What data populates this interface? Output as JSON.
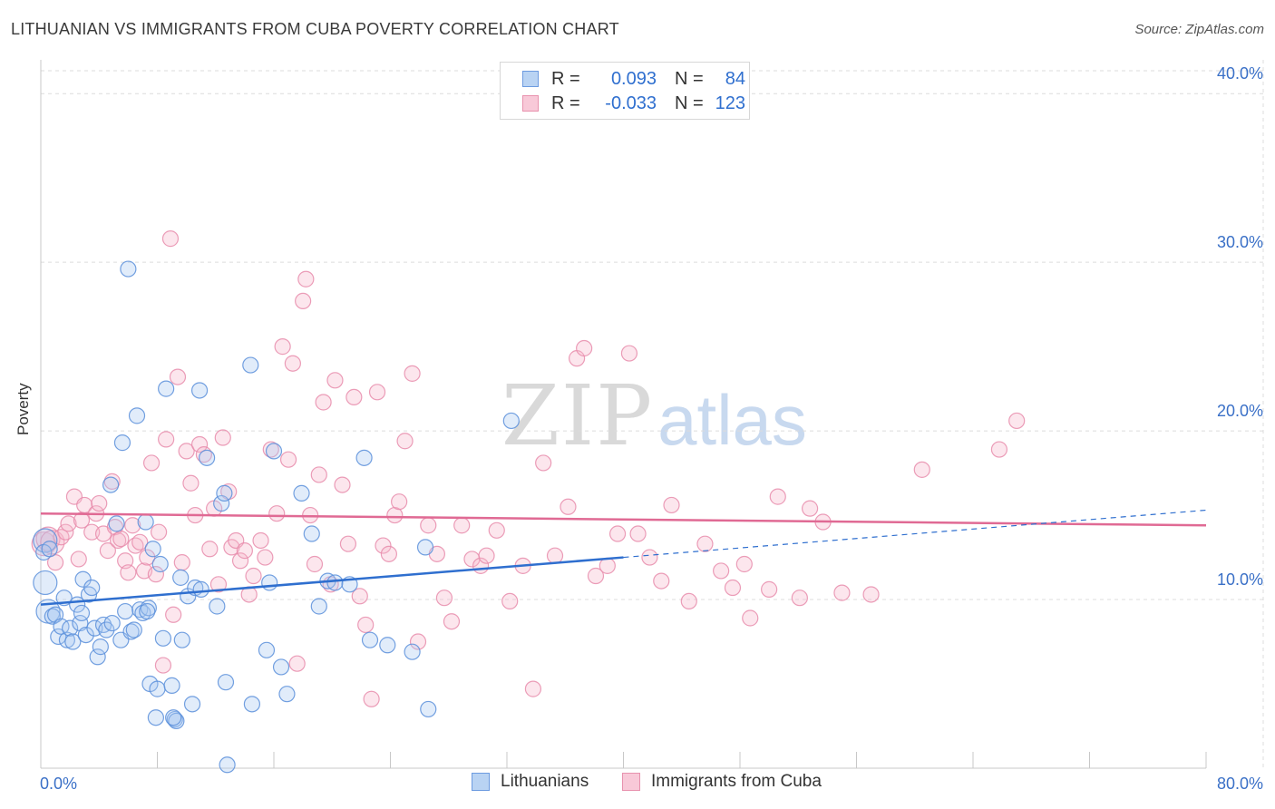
{
  "header": {
    "title": "LITHUANIAN VS IMMIGRANTS FROM CUBA POVERTY CORRELATION CHART",
    "source": "Source: ZipAtlas.com"
  },
  "watermark": {
    "zip": "ZIP",
    "atlas": "atlas"
  },
  "colors": {
    "blue": "#2f6fcf",
    "blue_fill": "#a9c8f0",
    "pink": "#e06a94",
    "pink_fill": "#f5b8cc",
    "grid": "#dcdcdc",
    "tick_label": "#3a70c7"
  },
  "legend": {
    "rows": [
      {
        "r_label": "R =",
        "r_value": "0.093",
        "n_label": "N =",
        "n_value": "84"
      },
      {
        "r_label": "R =",
        "r_value": "-0.033",
        "n_label": "N =",
        "n_value": "123"
      }
    ]
  },
  "bottom_legend": {
    "series1": "Lithuanians",
    "series2": "Immigrants from Cuba"
  },
  "chart_data": {
    "type": "scatter",
    "title": "LITHUANIAN VS IMMIGRANTS FROM CUBA POVERTY CORRELATION CHART",
    "xlabel": "",
    "ylabel": "Poverty",
    "xlim": [
      0,
      80
    ],
    "ylim": [
      0,
      42
    ],
    "x_tick_labels": [
      "0.0%",
      "80.0%"
    ],
    "y_ticks": [
      10,
      20,
      30,
      40
    ],
    "y_tick_labels": [
      "10.0%",
      "20.0%",
      "30.0%",
      "40.0%"
    ],
    "grid": true,
    "series": [
      {
        "name": "Lithuanians",
        "r": 0.093,
        "n": 84,
        "trend": {
          "x0": 0,
          "y0": 9.7,
          "x1": 40,
          "y1": 12.5,
          "dashed_to_x": 80,
          "dashed_to_y": 15.3
        },
        "points": [
          [
            0.3,
            13.5
          ],
          [
            0.3,
            11.0
          ],
          [
            0.5,
            9.3
          ],
          [
            0.8,
            9.0
          ],
          [
            1.0,
            9.1
          ],
          [
            1.2,
            7.8
          ],
          [
            1.4,
            8.4
          ],
          [
            1.6,
            10.1
          ],
          [
            1.8,
            7.6
          ],
          [
            2.0,
            8.3
          ],
          [
            2.2,
            7.5
          ],
          [
            2.5,
            9.7
          ],
          [
            2.7,
            8.6
          ],
          [
            2.9,
            11.2
          ],
          [
            3.1,
            7.9
          ],
          [
            3.3,
            10.3
          ],
          [
            3.5,
            10.7
          ],
          [
            3.7,
            8.3
          ],
          [
            3.9,
            6.6
          ],
          [
            4.1,
            7.2
          ],
          [
            4.3,
            8.5
          ],
          [
            4.5,
            8.2
          ],
          [
            4.8,
            16.8
          ],
          [
            4.9,
            8.6
          ],
          [
            5.2,
            14.5
          ],
          [
            5.5,
            7.6
          ],
          [
            5.6,
            19.3
          ],
          [
            5.8,
            9.3
          ],
          [
            6.0,
            29.6
          ],
          [
            6.2,
            8.1
          ],
          [
            6.4,
            8.2
          ],
          [
            6.6,
            20.9
          ],
          [
            6.8,
            9.4
          ],
          [
            7.0,
            9.2
          ],
          [
            7.2,
            14.6
          ],
          [
            7.4,
            9.5
          ],
          [
            7.5,
            5.0
          ],
          [
            7.7,
            13.0
          ],
          [
            7.9,
            3.0
          ],
          [
            8.0,
            4.7
          ],
          [
            8.2,
            12.1
          ],
          [
            8.4,
            7.7
          ],
          [
            8.6,
            22.5
          ],
          [
            9.0,
            4.9
          ],
          [
            9.2,
            2.9
          ],
          [
            9.3,
            2.8
          ],
          [
            9.6,
            11.3
          ],
          [
            9.7,
            7.6
          ],
          [
            10.1,
            10.2
          ],
          [
            10.4,
            3.8
          ],
          [
            10.6,
            10.7
          ],
          [
            10.9,
            22.4
          ],
          [
            11.0,
            10.6
          ],
          [
            11.4,
            18.4
          ],
          [
            12.1,
            9.6
          ],
          [
            12.4,
            15.7
          ],
          [
            12.6,
            16.3
          ],
          [
            12.7,
            5.1
          ],
          [
            12.8,
            0.2
          ],
          [
            14.4,
            23.9
          ],
          [
            14.5,
            3.8
          ],
          [
            15.5,
            7.0
          ],
          [
            15.7,
            11.0
          ],
          [
            16.0,
            18.8
          ],
          [
            16.5,
            6.0
          ],
          [
            16.9,
            4.4
          ],
          [
            17.9,
            16.3
          ],
          [
            18.6,
            13.9
          ],
          [
            19.1,
            9.6
          ],
          [
            19.7,
            11.1
          ],
          [
            20.2,
            11.0
          ],
          [
            21.2,
            10.9
          ],
          [
            22.2,
            18.4
          ],
          [
            22.6,
            7.6
          ],
          [
            23.8,
            7.3
          ],
          [
            25.5,
            6.9
          ],
          [
            26.4,
            13.1
          ],
          [
            26.6,
            3.5
          ],
          [
            32.3,
            20.6
          ],
          [
            0.2,
            12.8
          ],
          [
            0.6,
            13.0
          ],
          [
            2.8,
            9.2
          ],
          [
            9.1,
            3.0
          ],
          [
            7.3,
            9.3
          ]
        ]
      },
      {
        "name": "Immigrants from Cuba",
        "r": -0.033,
        "n": 123,
        "trend": {
          "x0": 0,
          "y0": 15.1,
          "x1": 80,
          "y1": 14.4
        },
        "points": [
          [
            0.2,
            13.3
          ],
          [
            0.5,
            13.6
          ],
          [
            0.8,
            13.4
          ],
          [
            1.0,
            12.2
          ],
          [
            1.4,
            13.7
          ],
          [
            1.7,
            14.0
          ],
          [
            1.9,
            14.5
          ],
          [
            2.3,
            16.1
          ],
          [
            2.6,
            12.4
          ],
          [
            2.8,
            14.7
          ],
          [
            3.0,
            15.6
          ],
          [
            3.5,
            14.0
          ],
          [
            3.8,
            15.1
          ],
          [
            4.0,
            15.7
          ],
          [
            4.3,
            13.9
          ],
          [
            4.6,
            12.9
          ],
          [
            4.9,
            17.0
          ],
          [
            5.1,
            14.3
          ],
          [
            5.3,
            13.5
          ],
          [
            5.5,
            13.6
          ],
          [
            5.8,
            12.3
          ],
          [
            6.0,
            11.6
          ],
          [
            6.3,
            14.4
          ],
          [
            6.5,
            13.2
          ],
          [
            6.8,
            13.4
          ],
          [
            7.1,
            11.7
          ],
          [
            7.3,
            12.5
          ],
          [
            7.6,
            18.1
          ],
          [
            7.9,
            11.5
          ],
          [
            8.1,
            14.0
          ],
          [
            8.4,
            6.1
          ],
          [
            8.6,
            19.5
          ],
          [
            8.9,
            31.4
          ],
          [
            9.1,
            9.1
          ],
          [
            9.4,
            23.2
          ],
          [
            9.7,
            12.2
          ],
          [
            10.0,
            18.8
          ],
          [
            10.3,
            16.9
          ],
          [
            10.6,
            15.0
          ],
          [
            10.9,
            19.2
          ],
          [
            11.2,
            18.6
          ],
          [
            11.6,
            13.0
          ],
          [
            11.9,
            15.4
          ],
          [
            12.2,
            10.9
          ],
          [
            12.5,
            19.6
          ],
          [
            12.9,
            16.4
          ],
          [
            13.1,
            13.1
          ],
          [
            13.4,
            13.5
          ],
          [
            13.7,
            12.3
          ],
          [
            14.0,
            12.9
          ],
          [
            14.3,
            10.3
          ],
          [
            14.6,
            11.4
          ],
          [
            15.1,
            13.5
          ],
          [
            15.4,
            12.5
          ],
          [
            15.8,
            18.9
          ],
          [
            16.2,
            15.1
          ],
          [
            16.6,
            25.0
          ],
          [
            17.0,
            18.3
          ],
          [
            17.3,
            24.0
          ],
          [
            17.6,
            6.2
          ],
          [
            18.0,
            27.7
          ],
          [
            18.2,
            29.0
          ],
          [
            18.5,
            15.0
          ],
          [
            18.8,
            12.1
          ],
          [
            19.1,
            17.4
          ],
          [
            19.4,
            21.7
          ],
          [
            19.9,
            10.9
          ],
          [
            20.2,
            23.0
          ],
          [
            20.7,
            16.8
          ],
          [
            21.1,
            13.3
          ],
          [
            21.5,
            22.0
          ],
          [
            21.9,
            10.2
          ],
          [
            22.3,
            8.5
          ],
          [
            22.7,
            4.1
          ],
          [
            23.1,
            22.3
          ],
          [
            23.5,
            13.2
          ],
          [
            23.9,
            12.7
          ],
          [
            24.3,
            15.0
          ],
          [
            24.6,
            15.8
          ],
          [
            25.0,
            19.4
          ],
          [
            25.5,
            23.4
          ],
          [
            25.9,
            7.5
          ],
          [
            26.6,
            14.4
          ],
          [
            27.2,
            12.7
          ],
          [
            27.7,
            10.1
          ],
          [
            28.2,
            8.7
          ],
          [
            28.9,
            14.4
          ],
          [
            29.6,
            12.4
          ],
          [
            30.2,
            12.0
          ],
          [
            30.6,
            12.6
          ],
          [
            31.3,
            14.1
          ],
          [
            32.2,
            9.9
          ],
          [
            33.1,
            12.0
          ],
          [
            33.8,
            4.7
          ],
          [
            34.5,
            18.1
          ],
          [
            35.3,
            12.6
          ],
          [
            36.2,
            15.5
          ],
          [
            36.8,
            24.3
          ],
          [
            37.3,
            24.9
          ],
          [
            38.1,
            11.4
          ],
          [
            38.9,
            12.0
          ],
          [
            39.6,
            13.9
          ],
          [
            40.4,
            24.6
          ],
          [
            41.0,
            13.9
          ],
          [
            41.8,
            12.5
          ],
          [
            42.6,
            11.1
          ],
          [
            43.3,
            15.6
          ],
          [
            44.5,
            9.9
          ],
          [
            45.6,
            13.3
          ],
          [
            46.7,
            11.7
          ],
          [
            47.5,
            10.7
          ],
          [
            48.3,
            12.1
          ],
          [
            48.7,
            8.9
          ],
          [
            50.0,
            10.6
          ],
          [
            50.6,
            16.1
          ],
          [
            52.1,
            10.1
          ],
          [
            52.8,
            15.4
          ],
          [
            53.7,
            14.6
          ],
          [
            55.0,
            10.4
          ],
          [
            57.0,
            10.3
          ],
          [
            60.5,
            17.7
          ],
          [
            65.8,
            18.9
          ],
          [
            67.0,
            20.6
          ]
        ]
      }
    ]
  }
}
